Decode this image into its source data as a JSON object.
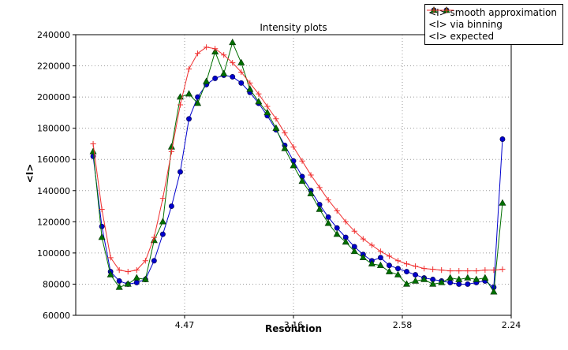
{
  "chart_data": {
    "type": "line",
    "title": "Intensity plots",
    "xlabel": "Resolution",
    "ylabel": "<I>",
    "grid": true,
    "legend_position": "upper right",
    "x_scale_note": "x axis linear in 1/d^2, tick labels show resolution d in Angstrom",
    "xlim": [
      0,
      0.2
    ],
    "ylim": [
      60000,
      240000
    ],
    "xticks": {
      "positions": [
        0.05,
        0.1,
        0.15,
        0.2
      ],
      "labels": [
        "4.47",
        "3.16",
        "2.58",
        "2.24"
      ]
    },
    "yticks": {
      "positions": [
        60000,
        80000,
        100000,
        120000,
        140000,
        160000,
        180000,
        200000,
        220000,
        240000
      ],
      "labels": [
        "60000",
        "80000",
        "100000",
        "120000",
        "140000",
        "160000",
        "180000",
        "200000",
        "220000",
        "240000"
      ]
    },
    "x": [
      0.008,
      0.012,
      0.016,
      0.02,
      0.024,
      0.028,
      0.032,
      0.036,
      0.04,
      0.044,
      0.048,
      0.052,
      0.056,
      0.06,
      0.064,
      0.068,
      0.072,
      0.076,
      0.08,
      0.084,
      0.088,
      0.092,
      0.096,
      0.1,
      0.104,
      0.108,
      0.112,
      0.116,
      0.12,
      0.124,
      0.128,
      0.132,
      0.136,
      0.14,
      0.144,
      0.148,
      0.152,
      0.156,
      0.16,
      0.164,
      0.168,
      0.172,
      0.176,
      0.18,
      0.184,
      0.188,
      0.192,
      0.196
    ],
    "series": [
      {
        "name": "<I> smooth approximation",
        "color": "#0000cd",
        "marker": "circle",
        "values": [
          162000,
          117000,
          88000,
          82000,
          80000,
          81000,
          83000,
          95000,
          112000,
          130000,
          152000,
          186000,
          200000,
          208000,
          212000,
          214000,
          213000,
          209000,
          203000,
          196000,
          188000,
          179000,
          169000,
          159000,
          149000,
          140000,
          131000,
          123000,
          116000,
          110000,
          104000,
          99000,
          95000,
          97000,
          92000,
          90000,
          88000,
          86000,
          84000,
          83000,
          82000,
          81000,
          80000,
          80000,
          81000,
          82000,
          78000,
          173000
        ]
      },
      {
        "name": "<I> via binning",
        "color": "#007000",
        "marker": "triangle",
        "values": [
          165000,
          110000,
          86000,
          78000,
          80000,
          84000,
          83000,
          108000,
          120000,
          168000,
          200000,
          202000,
          196000,
          210000,
          229000,
          215000,
          235000,
          222000,
          205000,
          197000,
          190000,
          180000,
          167000,
          156000,
          146000,
          138000,
          128000,
          119000,
          112000,
          107000,
          101000,
          97000,
          93000,
          92000,
          88000,
          86000,
          80000,
          82000,
          83000,
          80000,
          81000,
          84000,
          83000,
          84000,
          83000,
          84000,
          75000,
          132000
        ]
      },
      {
        "name": "<I> expected",
        "color": "#f03030",
        "marker": "plus",
        "values": [
          170000,
          128000,
          97000,
          89000,
          88000,
          89000,
          95000,
          110000,
          135000,
          165000,
          195000,
          218000,
          228000,
          232000,
          231000,
          227000,
          222000,
          216000,
          209000,
          202000,
          194000,
          186000,
          177000,
          168000,
          159000,
          150000,
          142000,
          134000,
          127000,
          120000,
          114000,
          109000,
          105000,
          101000,
          98000,
          95000,
          93000,
          91500,
          90000,
          89500,
          89000,
          88500,
          88500,
          88500,
          88500,
          89000,
          89000,
          89500
        ]
      }
    ]
  }
}
